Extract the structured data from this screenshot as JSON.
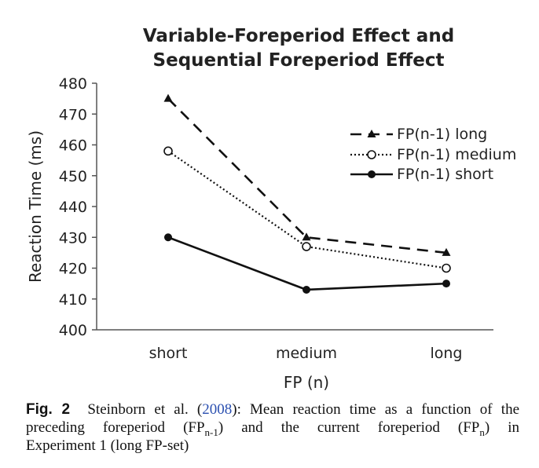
{
  "chart_data": {
    "type": "line",
    "title": [
      "Variable-Foreperiod Effect and",
      "Sequential Foreperiod Effect"
    ],
    "xlabel": "FP (n)",
    "ylabel": "Reaction Time (ms)",
    "categories": [
      "short",
      "medium",
      "long"
    ],
    "ylim": [
      400,
      480
    ],
    "yticks": [
      400,
      410,
      420,
      430,
      440,
      450,
      460,
      470,
      480
    ],
    "grid": false,
    "legend_position": "top-right",
    "series": [
      {
        "name": "FP(n-1) long",
        "values": [
          475,
          430,
          425
        ],
        "line": "dashed",
        "marker": "triangle"
      },
      {
        "name": "FP(n-1) medium",
        "values": [
          458,
          427,
          420
        ],
        "line": "dotted",
        "marker": "open-circle"
      },
      {
        "name": "FP(n-1) short",
        "values": [
          430,
          413,
          415
        ],
        "line": "solid",
        "marker": "filled-circle"
      }
    ]
  },
  "caption": {
    "label": "Fig. 2",
    "author": "Steinborn et al. (",
    "year": "2008",
    "line1_rest": "): Mean reaction time as a function of the",
    "line2_a": "preceding foreperiod (FP",
    "line2_sub1": "n-1",
    "line2_b": ") and the current foreperiod (FP",
    "line2_sub2": "n",
    "line2_c": ") in",
    "line3": "Experiment 1 (long FP-set)"
  }
}
